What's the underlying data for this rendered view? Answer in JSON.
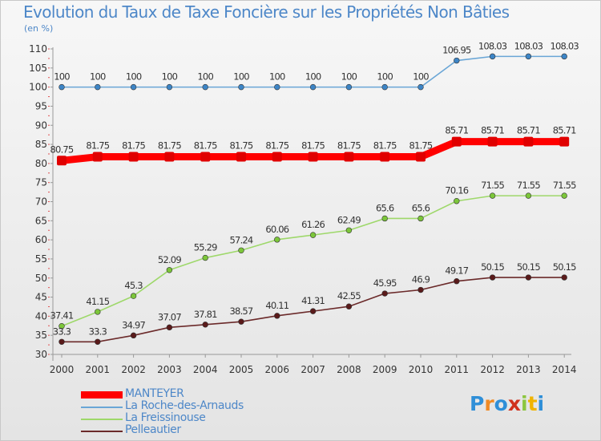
{
  "title": "Evolution du Taux de Taxe Foncière sur les Propriétés Non Bâties",
  "unit": "(en %)",
  "logo": {
    "text": [
      "P",
      "r",
      "o",
      "x",
      "i",
      "t",
      "i"
    ],
    "colors": [
      "#2f8fd8",
      "#f08a24",
      "#2f8fd8",
      "#d0321e",
      "#8cc63f",
      "#f0b400",
      "#2f8fd8"
    ]
  },
  "chart_data": {
    "type": "line",
    "title": "Evolution du Taux de Taxe Foncière sur les Propriétés Non Bâties",
    "ylabel": "(en %)",
    "xlabel": "",
    "ylim": [
      30,
      110
    ],
    "yticks": [
      30,
      35,
      40,
      45,
      50,
      55,
      60,
      65,
      70,
      75,
      80,
      85,
      90,
      95,
      100,
      105,
      110
    ],
    "categories": [
      "2000",
      "2001",
      "2002",
      "2003",
      "2004",
      "2005",
      "2006",
      "2007",
      "2008",
      "2009",
      "2010",
      "2011",
      "2012",
      "2013",
      "2014"
    ],
    "grid": false,
    "legend_position": "bottom-left",
    "series": [
      {
        "name": "MANTEYER",
        "color": "#ff0000",
        "marker": "#e00000",
        "values": [
          80.75,
          81.75,
          81.75,
          81.75,
          81.75,
          81.75,
          81.75,
          81.75,
          81.75,
          81.75,
          81.75,
          85.71,
          85.71,
          85.71,
          85.71
        ],
        "labels": [
          "80.75",
          "81.75",
          "81.75",
          "81.75",
          "81.75",
          "81.75",
          "81.75",
          "81.75",
          "81.75",
          "81.75",
          "81.75",
          "85.71",
          "85.71",
          "85.71",
          "85.71"
        ]
      },
      {
        "name": "La Roche-des-Arnauds",
        "color": "#6aa6d6",
        "marker": "#3d85c6",
        "values": [
          100,
          100,
          100,
          100,
          100,
          100,
          100,
          100,
          100,
          100,
          100,
          106.95,
          108.03,
          108.03,
          108.03
        ],
        "labels": [
          "100",
          "100",
          "100",
          "100",
          "100",
          "100",
          "100",
          "100",
          "100",
          "100",
          "100",
          "106.95",
          "108.03",
          "108.03",
          "108.03"
        ]
      },
      {
        "name": "La Freissinouse",
        "color": "#9ed86a",
        "marker": "#7cc63a",
        "values": [
          37.41,
          41.15,
          45.3,
          52.09,
          55.29,
          57.24,
          60.06,
          61.26,
          62.49,
          65.6,
          65.6,
          70.16,
          71.55,
          71.55,
          71.55
        ],
        "labels": [
          "37.41",
          "41.15",
          "45.3",
          "52.09",
          "55.29",
          "57.24",
          "60.06",
          "61.26",
          "62.49",
          "65.6",
          "65.6",
          "70.16",
          "71.55",
          "71.55",
          "71.55"
        ]
      },
      {
        "name": "Pelleautier",
        "color": "#6b2a2a",
        "marker": "#5a1a1a",
        "values": [
          33.3,
          33.3,
          34.97,
          37.07,
          37.81,
          38.57,
          40.11,
          41.31,
          42.55,
          45.95,
          46.9,
          49.17,
          50.15,
          50.15,
          50.15
        ],
        "labels": [
          "33.3",
          "33.3",
          "34.97",
          "37.07",
          "37.81",
          "38.57",
          "40.11",
          "41.31",
          "42.55",
          "45.95",
          "46.9",
          "49.17",
          "50.15",
          "50.15",
          "50.15"
        ]
      }
    ]
  }
}
